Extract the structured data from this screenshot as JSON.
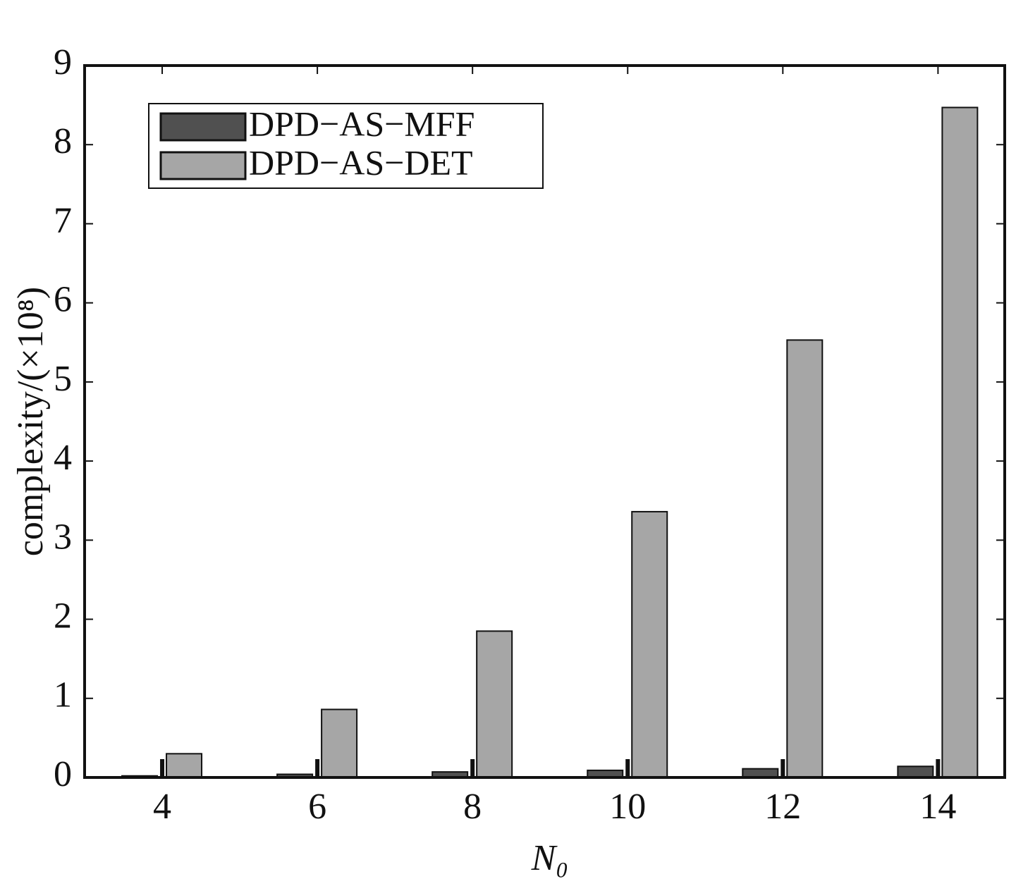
{
  "chart_data": {
    "type": "bar",
    "ylabel": "complexity/(×10⁸)",
    "xlabel": "N₀",
    "x": [
      4,
      6,
      8,
      10,
      12,
      14
    ],
    "xlim": [
      3,
      14.86
    ],
    "xticks": [
      4,
      6,
      8,
      10,
      12,
      14
    ],
    "ylim": [
      0,
      9
    ],
    "yticks": [
      0,
      1,
      2,
      3,
      4,
      5,
      6,
      7,
      8,
      9
    ],
    "legend": "upper left",
    "series": [
      {
        "name": "DPD−AS−MFF",
        "color": "#505050",
        "values": [
          0.02,
          0.04,
          0.07,
          0.09,
          0.11,
          0.14
        ]
      },
      {
        "name": "DPD−AS−DET",
        "color": "#a6a6a6",
        "values": [
          0.3,
          0.86,
          1.85,
          3.36,
          5.53,
          8.47
        ]
      }
    ]
  }
}
